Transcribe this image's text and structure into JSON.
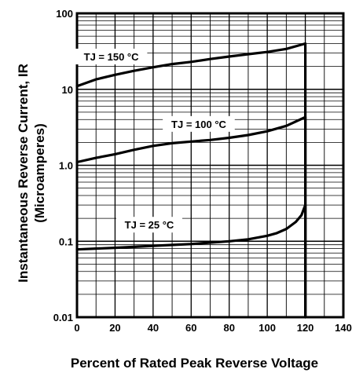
{
  "chart_data": {
    "type": "line",
    "title": "",
    "xlabel": "Percent of Rated Peak Reverse Voltage",
    "ylabel_line1": "Instantaneous Reverse Current, IR",
    "ylabel_line2": "(Microamperes)",
    "xlim": [
      0,
      140
    ],
    "ylim": [
      0.01,
      100
    ],
    "y_scale": "log",
    "grid": true,
    "x_ticks": [
      "0",
      "20",
      "40",
      "60",
      "80",
      "100",
      "120",
      "140"
    ],
    "y_ticks": [
      "100",
      "10",
      "1.0",
      "0.1",
      "0.01"
    ],
    "y_tick_values": [
      100,
      10,
      1,
      0.1,
      0.01
    ],
    "x_tick_values": [
      0,
      20,
      40,
      60,
      80,
      100,
      120,
      140
    ],
    "line_color": "#000000",
    "series": [
      {
        "name": "TJ = 150 °C",
        "x": [
          0,
          10,
          20,
          30,
          40,
          50,
          60,
          70,
          80,
          90,
          100,
          110,
          120,
          120
        ],
        "y": [
          11,
          13.5,
          15.5,
          17.5,
          19.5,
          21.5,
          23,
          25,
          27,
          29,
          31,
          34,
          40,
          0.01
        ]
      },
      {
        "name": "TJ = 100 °C",
        "x": [
          0,
          10,
          20,
          30,
          40,
          50,
          60,
          70,
          80,
          90,
          100,
          110,
          120,
          120
        ],
        "y": [
          1.1,
          1.25,
          1.4,
          1.6,
          1.8,
          1.95,
          2.05,
          2.15,
          2.3,
          2.5,
          2.8,
          3.3,
          4.3,
          0.01
        ]
      },
      {
        "name": "TJ = 25 °C",
        "x": [
          0,
          20,
          40,
          60,
          80,
          90,
          100,
          105,
          110,
          115,
          118,
          120,
          120
        ],
        "y": [
          0.078,
          0.082,
          0.087,
          0.092,
          0.1,
          0.106,
          0.118,
          0.128,
          0.145,
          0.18,
          0.22,
          0.3,
          0.01
        ]
      }
    ]
  }
}
